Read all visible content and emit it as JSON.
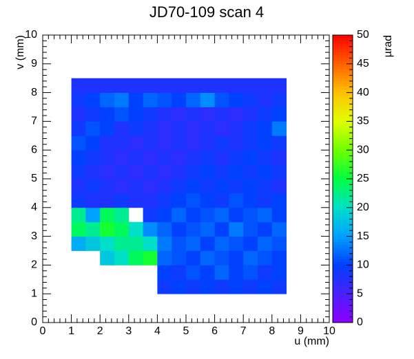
{
  "chart_data": {
    "type": "heatmap",
    "title": "JD70-109 scan 4",
    "x_label": "u (mm)",
    "y_label": "v (mm)",
    "z_label": "µrad",
    "xlim": [
      0,
      10
    ],
    "ylim": [
      0,
      10
    ],
    "zlim": [
      0,
      50
    ],
    "xticks": [
      0,
      1,
      2,
      3,
      4,
      5,
      6,
      7,
      8,
      9,
      10
    ],
    "yticks": [
      0,
      1,
      2,
      3,
      4,
      5,
      6,
      7,
      8,
      9,
      10
    ],
    "zticks": [
      0,
      5,
      10,
      15,
      20,
      25,
      30,
      35,
      40,
      45,
      50
    ],
    "colorscale": [
      "#8a00ff",
      "#4a20ff",
      "#0040ff",
      "#00a0ff",
      "#00e0c8",
      "#00ff40",
      "#70ff00",
      "#e0ff00",
      "#ffc000",
      "#ff6000",
      "#ff0000"
    ],
    "x_edges": [
      1.0,
      1.5,
      2.0,
      2.5,
      3.0,
      3.5,
      4.0,
      4.5,
      5.0,
      5.5,
      6.0,
      6.5,
      7.0,
      7.5,
      8.0,
      8.5
    ],
    "y_edges": [
      1.0,
      1.5,
      2.0,
      2.5,
      3.0,
      3.5,
      4.0,
      4.5,
      5.0,
      5.5,
      6.0,
      6.5,
      7.0,
      7.5,
      8.0,
      8.5
    ],
    "z": [
      [
        null,
        null,
        null,
        null,
        null,
        null,
        9,
        10,
        9,
        10,
        9,
        10,
        9,
        10,
        9
      ],
      [
        null,
        null,
        null,
        null,
        null,
        null,
        10,
        9,
        11,
        10,
        12,
        10,
        11,
        9,
        10
      ],
      [
        null,
        null,
        18,
        20,
        24,
        26,
        12,
        11,
        10,
        12,
        11,
        10,
        12,
        11,
        10
      ],
      [
        16,
        18,
        20,
        22,
        22,
        20,
        13,
        11,
        12,
        10,
        12,
        11,
        10,
        12,
        11
      ],
      [
        24,
        22,
        26,
        24,
        20,
        14,
        12,
        10,
        11,
        12,
        10,
        13,
        11,
        10,
        12
      ],
      [
        22,
        15,
        24,
        22,
        null,
        9,
        10,
        12,
        10,
        11,
        12,
        10,
        11,
        12,
        10
      ],
      [
        9,
        8,
        8,
        9,
        8,
        8,
        9,
        10,
        11,
        10,
        9,
        11,
        10,
        9,
        10
      ],
      [
        8,
        9,
        8,
        7,
        8,
        7,
        8,
        9,
        10,
        9,
        10,
        9,
        10,
        9,
        8
      ],
      [
        9,
        8,
        7,
        8,
        7,
        8,
        7,
        8,
        9,
        10,
        9,
        10,
        9,
        10,
        9
      ],
      [
        10,
        9,
        8,
        7,
        8,
        7,
        8,
        7,
        8,
        9,
        8,
        9,
        10,
        9,
        8
      ],
      [
        11,
        10,
        8,
        8,
        7,
        8,
        7,
        8,
        7,
        8,
        9,
        8,
        9,
        10,
        9
      ],
      [
        9,
        11,
        10,
        8,
        9,
        8,
        7,
        8,
        7,
        8,
        7,
        8,
        9,
        10,
        13
      ],
      [
        8,
        9,
        10,
        11,
        10,
        9,
        8,
        7,
        8,
        7,
        8,
        7,
        8,
        9,
        10
      ],
      [
        9,
        10,
        12,
        13,
        10,
        12,
        11,
        10,
        12,
        14,
        11,
        10,
        9,
        8,
        9
      ],
      [
        8,
        8,
        8,
        8,
        8,
        8,
        8,
        8,
        8,
        8,
        8,
        8,
        8,
        8,
        8
      ]
    ]
  }
}
